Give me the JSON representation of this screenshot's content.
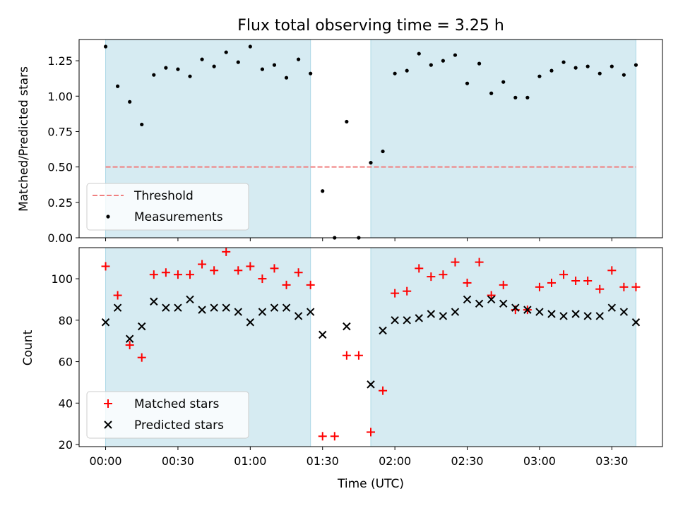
{
  "figure": {
    "title": "Flux total observing time = 3.25 h",
    "xlabel": "Time (UTC)",
    "x_ticks": [
      "00:00",
      "00:30",
      "01:00",
      "01:30",
      "02:00",
      "02:30",
      "03:00",
      "03:30"
    ]
  },
  "colors": {
    "shade": "#add8e6",
    "threshold": "#f08080",
    "measurement": "#000000",
    "matched": "#ff0000",
    "predicted": "#000000"
  },
  "chart_data": [
    {
      "type": "scatter",
      "ylabel": "Matched/Predicted stars",
      "xlim": [
        "23:49",
        "03:51"
      ],
      "ylim": [
        0,
        1.4
      ],
      "y_ticks": [
        "0.00",
        "0.25",
        "0.50",
        "0.75",
        "1.00",
        "1.25"
      ],
      "shaded_intervals": [
        [
          "00:00",
          "01:25"
        ],
        [
          "01:50",
          "03:40"
        ]
      ],
      "threshold": 0.5,
      "legend": {
        "position": "lower left",
        "threshold_label": "Threshold",
        "measurements_label": "Measurements"
      },
      "series": [
        {
          "name": "Measurements",
          "x": [
            "00:00",
            "00:05",
            "00:10",
            "00:15",
            "00:20",
            "00:25",
            "00:30",
            "00:35",
            "00:40",
            "00:45",
            "00:50",
            "00:55",
            "01:00",
            "01:05",
            "01:10",
            "01:15",
            "01:20",
            "01:25",
            "01:30",
            "01:35",
            "01:40",
            "01:45",
            "01:50",
            "01:55",
            "02:00",
            "02:05",
            "02:10",
            "02:15",
            "02:20",
            "02:25",
            "02:30",
            "02:35",
            "02:40",
            "02:45",
            "02:50",
            "02:55",
            "03:00",
            "03:05",
            "03:10",
            "03:15",
            "03:20",
            "03:25",
            "03:30",
            "03:35",
            "03:40"
          ],
          "y": [
            1.35,
            1.07,
            0.96,
            0.8,
            1.15,
            1.2,
            1.19,
            1.14,
            1.26,
            1.21,
            1.31,
            1.24,
            1.35,
            1.19,
            1.22,
            1.13,
            1.26,
            1.16,
            0.33,
            0.0,
            0.82,
            0.0,
            0.53,
            0.61,
            1.16,
            1.18,
            1.3,
            1.22,
            1.25,
            1.29,
            1.09,
            1.23,
            1.02,
            1.1,
            0.99,
            0.99,
            1.14,
            1.18,
            1.24,
            1.2,
            1.21,
            1.16,
            1.21,
            1.15,
            1.22
          ]
        }
      ]
    },
    {
      "type": "scatter",
      "ylabel": "Count",
      "xlim": [
        "23:49",
        "03:51"
      ],
      "ylim": [
        19,
        115
      ],
      "y_ticks": [
        "20",
        "40",
        "60",
        "80",
        "100"
      ],
      "shaded_intervals": [
        [
          "00:00",
          "01:25"
        ],
        [
          "01:50",
          "03:40"
        ]
      ],
      "legend": {
        "position": "lower left",
        "matched_label": "Matched stars",
        "predicted_label": "Predicted stars"
      },
      "series": [
        {
          "name": "Matched stars",
          "x": [
            "00:00",
            "00:05",
            "00:10",
            "00:15",
            "00:20",
            "00:25",
            "00:30",
            "00:35",
            "00:40",
            "00:45",
            "00:50",
            "00:55",
            "01:00",
            "01:05",
            "01:10",
            "01:15",
            "01:20",
            "01:25",
            "01:30",
            "01:35",
            "01:40",
            "01:45",
            "01:50",
            "01:55",
            "02:00",
            "02:05",
            "02:10",
            "02:15",
            "02:20",
            "02:25",
            "02:30",
            "02:35",
            "02:40",
            "02:45",
            "02:50",
            "02:55",
            "03:00",
            "03:05",
            "03:10",
            "03:15",
            "03:20",
            "03:25",
            "03:30",
            "03:35",
            "03:40"
          ],
          "y": [
            106,
            92,
            68,
            62,
            102,
            103,
            102,
            102,
            107,
            104,
            113,
            104,
            106,
            100,
            105,
            97,
            103,
            97,
            24,
            24,
            63,
            63,
            26,
            46,
            93,
            94,
            105,
            101,
            102,
            108,
            98,
            108,
            92,
            97,
            85,
            85,
            96,
            98,
            102,
            99,
            99,
            95,
            104,
            96,
            96
          ]
        },
        {
          "name": "Predicted stars",
          "x": [
            "00:00",
            "00:05",
            "00:10",
            "00:15",
            "00:20",
            "00:25",
            "00:30",
            "00:35",
            "00:40",
            "00:45",
            "00:50",
            "00:55",
            "01:00",
            "01:05",
            "01:10",
            "01:15",
            "01:20",
            "01:25",
            "01:30",
            "01:40",
            "01:50",
            "01:55",
            "02:00",
            "02:05",
            "02:10",
            "02:15",
            "02:20",
            "02:25",
            "02:30",
            "02:35",
            "02:40",
            "02:45",
            "02:50",
            "02:55",
            "03:00",
            "03:05",
            "03:10",
            "03:15",
            "03:20",
            "03:25",
            "03:30",
            "03:35",
            "03:40"
          ],
          "y": [
            79,
            86,
            71,
            77,
            89,
            86,
            86,
            90,
            85,
            86,
            86,
            84,
            79,
            84,
            86,
            86,
            82,
            84,
            73,
            77,
            49,
            75,
            80,
            80,
            81,
            83,
            82,
            84,
            90,
            88,
            90,
            88,
            86,
            85,
            84,
            83,
            82,
            83,
            82,
            82,
            86,
            84,
            79
          ]
        }
      ]
    }
  ]
}
